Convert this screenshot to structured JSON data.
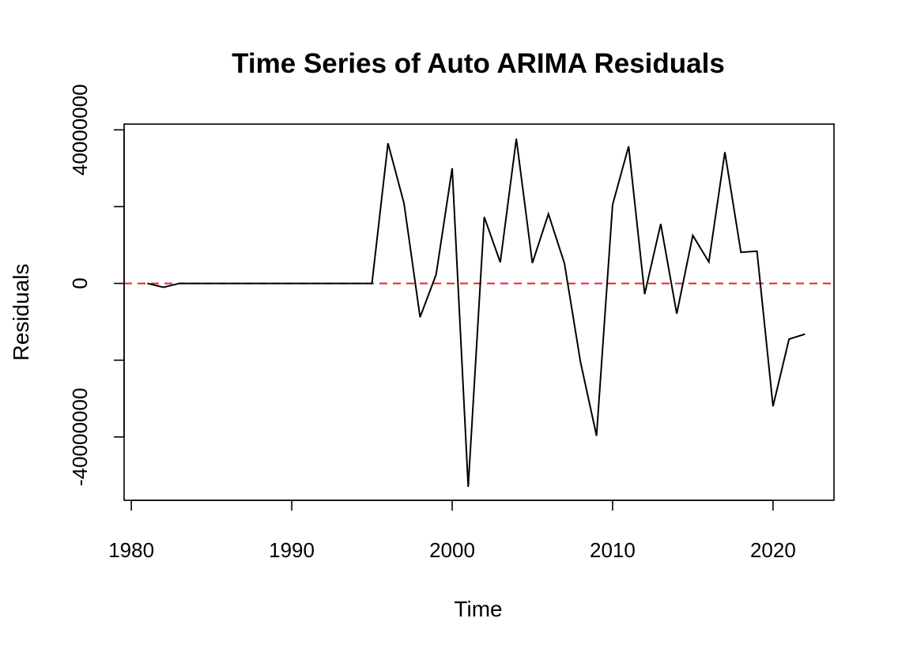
{
  "chart_data": {
    "type": "line",
    "title": "Time Series of Auto ARIMA Residuals",
    "xlabel": "Time",
    "ylabel": "Residuals",
    "xlim": [
      1979.55,
      2023.8
    ],
    "ylim": [
      -56500000,
      41500000
    ],
    "x_ticks": [
      {
        "value": 1980,
        "label": "1980"
      },
      {
        "value": 1990,
        "label": "1990"
      },
      {
        "value": 2000,
        "label": "2000"
      },
      {
        "value": 2010,
        "label": "2010"
      },
      {
        "value": 2020,
        "label": "2020"
      }
    ],
    "y_ticks": [
      {
        "value": -40000000,
        "label": "-40000000",
        "show_label": true
      },
      {
        "value": -20000000,
        "label": "",
        "show_label": false
      },
      {
        "value": 0,
        "label": "0",
        "show_label": true
      },
      {
        "value": 20000000,
        "label": "",
        "show_label": false
      },
      {
        "value": 40000000,
        "label": "40000000",
        "show_label": true
      }
    ],
    "reference_line": {
      "y": 0,
      "color": "#e8232a",
      "style": "dashed"
    },
    "series": [
      {
        "color": "#000000",
        "x": [
          1981,
          1982,
          1983,
          1984,
          1985,
          1986,
          1987,
          1988,
          1989,
          1990,
          1991,
          1992,
          1993,
          1994,
          1995,
          1996,
          1997,
          1998,
          1999,
          2000,
          2001,
          2002,
          2003,
          2004,
          2005,
          2006,
          2007,
          2008,
          2009,
          2010,
          2011,
          2012,
          2013,
          2014,
          2015,
          2016,
          2017,
          2018,
          2019,
          2020,
          2021,
          2022
        ],
        "y": [
          0,
          -1000000,
          0,
          0,
          0,
          0,
          0,
          0,
          0,
          0,
          0,
          0,
          0,
          0,
          0,
          36500000,
          20800000,
          -8800000,
          2300000,
          30000000,
          -53000000,
          17300000,
          5500000,
          37700000,
          5300000,
          18100000,
          5200000,
          -20500000,
          -39700000,
          20500000,
          35700000,
          -2800000,
          15500000,
          -7900000,
          12500000,
          5600000,
          34200000,
          8100000,
          8400000,
          -32000000,
          -14500000,
          -13200000
        ]
      }
    ]
  }
}
